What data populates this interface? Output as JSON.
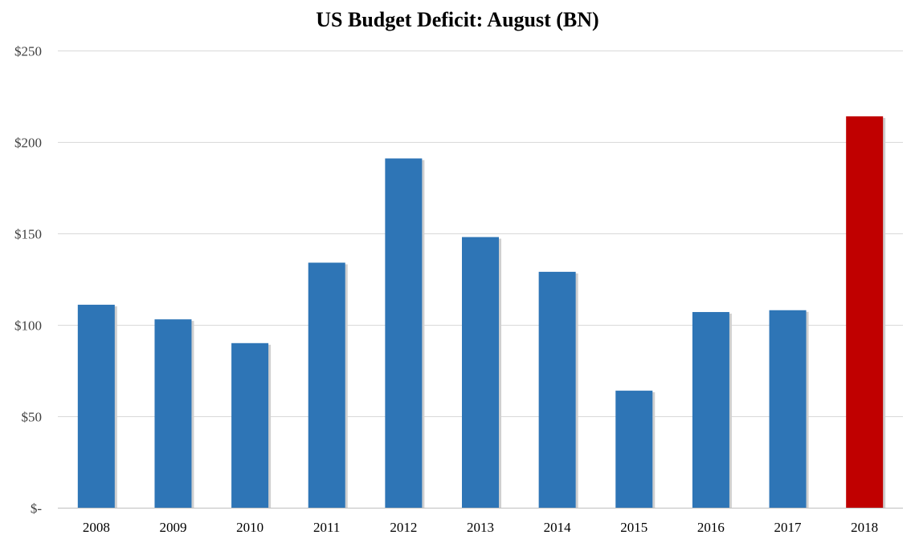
{
  "chart_data": {
    "type": "bar",
    "title": "US Budget Deficit: August (BN)",
    "xlabel": "",
    "ylabel": "",
    "categories": [
      "2008",
      "2009",
      "2010",
      "2011",
      "2012",
      "2013",
      "2014",
      "2015",
      "2016",
      "2017",
      "2018"
    ],
    "values": [
      111,
      103,
      90,
      134,
      191,
      148,
      129,
      64,
      107,
      108,
      214
    ],
    "ylim": [
      0,
      250
    ],
    "yticks": [
      0,
      50,
      100,
      150,
      200,
      250
    ],
    "ytick_labels": [
      "$-",
      "$50",
      "$100",
      "$150",
      "$200",
      "$250"
    ],
    "grid": true,
    "bar_color": "#2E75B6",
    "highlight_color": "#C00000",
    "highlight_index": 10,
    "gridline_color": "#D9D9D9"
  }
}
